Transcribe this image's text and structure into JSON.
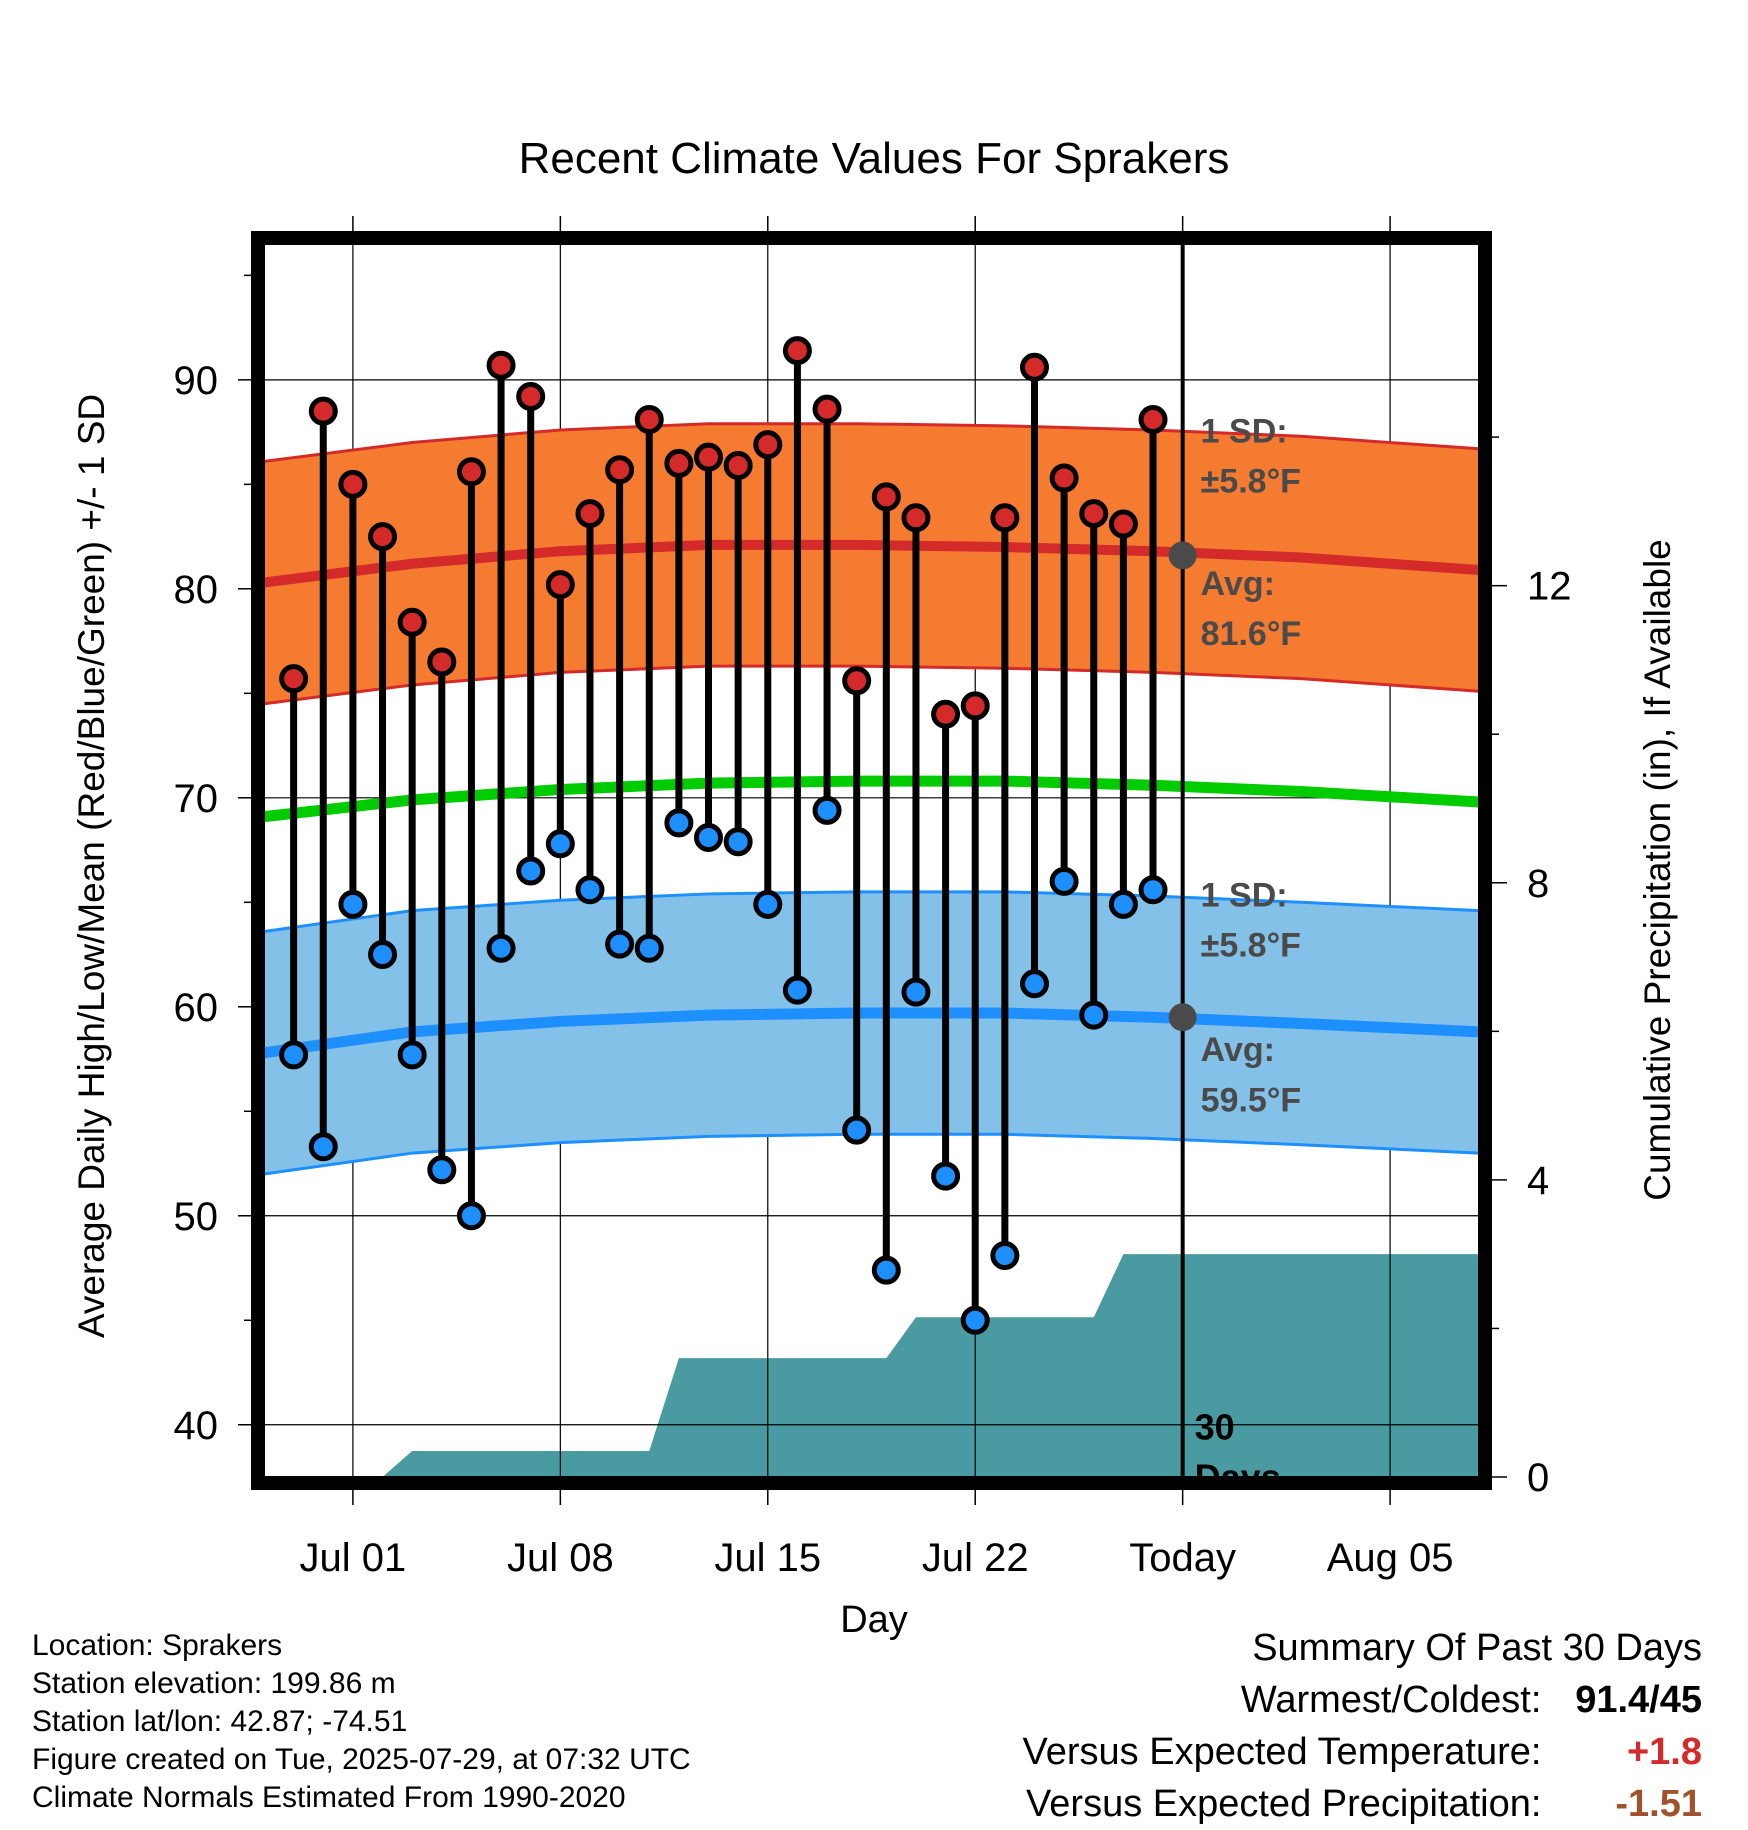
{
  "chart_data": {
    "type": "line",
    "title": "Recent Climate Values For Sprakers",
    "xlabel": "Day",
    "ylabel": "Average Daily High/Low/Mean (Red/Blue/Green) +/- 1 SD",
    "y2label": "Cumulative Precipitation (in), If Available",
    "x_range": [
      "2025-06-28",
      "2025-08-08"
    ],
    "ylim": [
      37.5,
      96.5
    ],
    "y2lim": [
      0,
      16.6
    ],
    "yticks": [
      40,
      50,
      60,
      70,
      80,
      90
    ],
    "y2ticks": [
      0,
      4,
      8,
      12
    ],
    "xticks": [
      {
        "date": "2025-07-01",
        "label": "Jul 01"
      },
      {
        "date": "2025-07-08",
        "label": "Jul 08"
      },
      {
        "date": "2025-07-15",
        "label": "Jul 15"
      },
      {
        "date": "2025-07-22",
        "label": "Jul 22"
      },
      {
        "date": "2025-07-29",
        "label": "Today"
      },
      {
        "date": "2025-08-05",
        "label": "Aug 05"
      }
    ],
    "grid": true,
    "today": "2025-07-29",
    "dates": [
      "2025-06-29",
      "2025-06-30",
      "2025-07-01",
      "2025-07-02",
      "2025-07-03",
      "2025-07-04",
      "2025-07-05",
      "2025-07-06",
      "2025-07-07",
      "2025-07-08",
      "2025-07-09",
      "2025-07-10",
      "2025-07-11",
      "2025-07-12",
      "2025-07-13",
      "2025-07-14",
      "2025-07-15",
      "2025-07-16",
      "2025-07-17",
      "2025-07-18",
      "2025-07-19",
      "2025-07-20",
      "2025-07-21",
      "2025-07-22",
      "2025-07-23",
      "2025-07-24",
      "2025-07-25",
      "2025-07-26",
      "2025-07-27",
      "2025-07-28"
    ],
    "daily_high": [
      75.7,
      88.5,
      85.0,
      82.5,
      78.4,
      76.5,
      85.6,
      90.7,
      89.2,
      80.2,
      83.6,
      85.7,
      88.1,
      86.0,
      86.3,
      85.9,
      86.9,
      91.4,
      88.6,
      75.6,
      84.4,
      83.4,
      74.0,
      74.4,
      83.4,
      90.6,
      85.3,
      83.6,
      83.1,
      88.1
    ],
    "daily_low": [
      57.7,
      53.3,
      64.9,
      62.5,
      57.7,
      52.2,
      50.0,
      62.8,
      66.5,
      67.8,
      65.6,
      63.0,
      62.8,
      68.8,
      68.1,
      67.9,
      64.9,
      60.8,
      69.4,
      54.1,
      47.4,
      60.7,
      51.9,
      45.0,
      48.1,
      61.1,
      66.0,
      59.6,
      64.9,
      65.6
    ],
    "normals_dates": [
      "2025-06-28",
      "2025-07-03",
      "2025-07-08",
      "2025-07-13",
      "2025-07-18",
      "2025-07-23",
      "2025-07-28",
      "2025-08-02",
      "2025-08-08"
    ],
    "normal_high": [
      80.3,
      81.2,
      81.8,
      82.1,
      82.1,
      82.0,
      81.8,
      81.5,
      80.9
    ],
    "normal_mean": [
      69.1,
      69.9,
      70.4,
      70.7,
      70.8,
      70.8,
      70.6,
      70.3,
      69.8
    ],
    "normal_low": [
      57.8,
      58.8,
      59.3,
      59.6,
      59.7,
      59.7,
      59.5,
      59.2,
      58.8
    ],
    "sd": 5.8,
    "annotations": {
      "high_sd_label": "1 SD:",
      "high_sd_value": "±5.8°F",
      "high_avg_label": "Avg:",
      "high_avg_value": "81.6°F",
      "low_sd_label": "1 SD:",
      "low_sd_value": "±5.8°F",
      "low_avg_label": "Avg:",
      "low_avg_value": "59.5°F",
      "period_label_1": "30",
      "period_label_2": "Days"
    },
    "precip_cumulative": {
      "x": [
        "2025-06-28",
        "2025-07-02",
        "2025-07-03",
        "2025-07-11",
        "2025-07-12",
        "2025-07-19",
        "2025-07-20",
        "2025-07-26",
        "2025-07-27",
        "2025-08-08"
      ],
      "y": [
        0.0,
        0.0,
        0.35,
        0.35,
        1.6,
        1.6,
        2.15,
        2.15,
        3.0,
        3.0
      ]
    },
    "colors": {
      "high_band": "#f47b30",
      "high_line": "#d42a2a",
      "mean_line": "#00cc00",
      "low_band": "#84c1e8",
      "low_line": "#1e8fff",
      "precip": "#4a9aa2",
      "high_dot": "#d42a2a",
      "low_dot": "#1e8fff",
      "avg_marker": "#4a4a4a",
      "annotation_text": "#4a4a4a"
    }
  },
  "info": {
    "location": "Location: Sprakers",
    "elevation": "Station elevation: 199.86 m",
    "latlon": "Station lat/lon: 42.87; -74.51",
    "created": "Figure created on Tue, 2025-07-29, at 07:32 UTC",
    "normals": "Climate Normals Estimated From 1990-2020"
  },
  "summary": {
    "heading": "Summary Of Past 30 Days",
    "warmest_coldest_label": "Warmest/Coldest:",
    "warmest_coldest_value": "91.4/45",
    "temp_label": "Versus Expected Temperature:",
    "temp_value": "+1.8",
    "temp_color": "#d42a2a",
    "precip_label": "Versus Expected Precipitation:",
    "precip_value": "-1.51",
    "precip_color": "#a0522d"
  }
}
